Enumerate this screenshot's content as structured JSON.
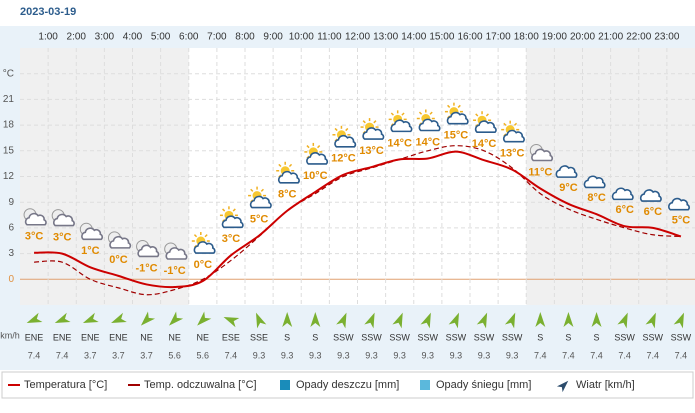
{
  "chart_data": {
    "type": "line",
    "title": "2023-03-19",
    "categories": [
      null,
      "1:00",
      "2:00",
      "3:00",
      "4:00",
      "5:00",
      "6:00",
      "7:00",
      "8:00",
      "9:00",
      "10:00",
      "11:00",
      "12:00",
      "13:00",
      "14:00",
      "15:00",
      "16:00",
      "17:00",
      "18:00",
      "19:00",
      "20:00",
      "21:00",
      "22:00",
      "23:00"
    ],
    "series": [
      {
        "name": "Temperatura [°C]",
        "color": "#cc0000",
        "dashed": false,
        "values": [
          3.1,
          3,
          1.4,
          0.4,
          -0.6,
          -0.9,
          -0.2,
          2.8,
          5.1,
          8,
          10.2,
          12.2,
          13.1,
          14,
          14.1,
          14.9,
          13.9,
          12.8,
          10.6,
          8.8,
          7.6,
          6.2,
          6,
          5
        ],
        "value_labels": [
          "3°C",
          "3°C",
          "1°C",
          "0°C",
          "-1°C",
          "-1°C",
          "0°C",
          "3°C",
          "5°C",
          "8°C",
          "10°C",
          "12°C",
          "13°C",
          "14°C",
          "14°C",
          "15°C",
          "14°C",
          "13°C",
          "11°C",
          "9°C",
          "8°C",
          "6°C",
          "6°C",
          "5°C"
        ]
      },
      {
        "name": "Temp. odczuwalna [°C]",
        "color": "#a00000",
        "dashed": true,
        "values": [
          2,
          2,
          0,
          -1,
          -1.8,
          -1.2,
          0,
          2.2,
          5,
          8,
          10,
          12,
          13,
          14,
          15,
          15.6,
          15,
          13,
          10,
          8.2,
          7,
          6,
          5.2,
          5
        ]
      }
    ],
    "precipitation": [
      {
        "name": "Opady deszczu [mm]",
        "color": "#1a8cba"
      },
      {
        "name": "Opady śniegu [mm]",
        "color": "#5bb8dc"
      }
    ],
    "wind": {
      "name": "Wiatr [km/h]",
      "unit_label": "km/h",
      "color": "#2c4c6c",
      "directions": [
        "ENE",
        "ENE",
        "ENE",
        "ENE",
        "NE",
        "NE",
        "NE",
        "ESE",
        "SSE",
        "S",
        "S",
        "SSW",
        "SSW",
        "SSW",
        "SSW",
        "SSW",
        "SSW",
        "SSW",
        "S",
        "S",
        "S",
        "SSW",
        "SSW",
        "SSW"
      ],
      "speeds": [
        7.4,
        7.4,
        3.7,
        3.7,
        3.7,
        5.6,
        5.6,
        7.4,
        9.3,
        9.3,
        9.3,
        9.3,
        9.3,
        9.3,
        9.3,
        9.3,
        9.3,
        9.3,
        7.4,
        7.4,
        7.4,
        7.4,
        7.4,
        7.4
      ]
    },
    "ylim": [
      -3,
      27
    ],
    "yticks": [
      0,
      3,
      6,
      9,
      12,
      15,
      18,
      21,
      {
        "value": 24,
        "label": "°C"
      }
    ],
    "grid": true
  }
}
